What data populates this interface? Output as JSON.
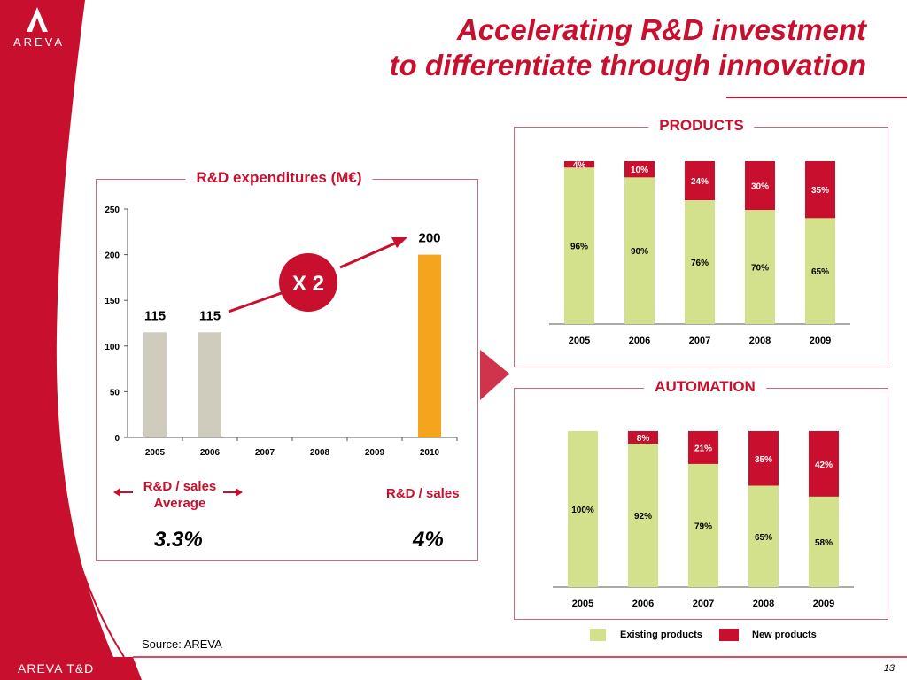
{
  "brand": {
    "logo_text": "AREVA",
    "footer_text": "AREVA T&D",
    "page_number": "13",
    "red": "#c8102e"
  },
  "title": {
    "line1": "Accelerating R&D investment",
    "line2": "to differentiate through innovation"
  },
  "source": "Source: AREVA",
  "left_panel": {
    "box_title": "R&D expenditures (M€)",
    "multiplier_label": "X 2",
    "rd_sales_avg_label": "R&D / sales Average",
    "rd_sales_avg_line1": "R&D / sales",
    "rd_sales_avg_line2": "Average",
    "rd_sales_avg_value": "3.3%",
    "rd_sales_label": "R&D / sales",
    "rd_sales_value": "4%"
  },
  "products_title": "PRODUCTS",
  "automation_title": "AUTOMATION",
  "legend": [
    {
      "label": "Existing products",
      "color": "#d4e18c"
    },
    {
      "label": "New products",
      "color": "#c8102e"
    }
  ],
  "chart_data": [
    {
      "type": "bar",
      "title": "R&D expenditures (M€)",
      "categories": [
        "2005",
        "2006",
        "2007",
        "2008",
        "2009",
        "2010"
      ],
      "values": [
        115,
        115,
        null,
        null,
        null,
        200
      ],
      "data_labels": [
        "115",
        "115",
        "",
        "",
        "",
        "200"
      ],
      "colors": [
        "#cfcbbd",
        "#cfcbbd",
        null,
        null,
        null,
        "#f5a41e"
      ],
      "ylim": [
        0,
        250
      ],
      "yticks": [
        0,
        50,
        100,
        150,
        200,
        250
      ],
      "grid": false
    },
    {
      "type": "bar",
      "stacked": true,
      "percent": true,
      "title": "PRODUCTS",
      "categories": [
        "2005",
        "2006",
        "2007",
        "2008",
        "2009"
      ],
      "series": [
        {
          "name": "Existing products",
          "values": [
            96,
            90,
            76,
            70,
            65
          ],
          "labels": [
            "96%",
            "90%",
            "76%",
            "70%",
            "65%"
          ],
          "color": "#d4e18c"
        },
        {
          "name": "New products",
          "values": [
            4,
            10,
            24,
            30,
            35
          ],
          "labels": [
            "4%",
            "10%",
            "24%",
            "30%",
            "35%"
          ],
          "color": "#c8102e"
        }
      ],
      "ylim": [
        0,
        100
      ]
    },
    {
      "type": "bar",
      "stacked": true,
      "percent": true,
      "title": "AUTOMATION",
      "categories": [
        "2005",
        "2006",
        "2007",
        "2008",
        "2009"
      ],
      "series": [
        {
          "name": "Existing products",
          "values": [
            100,
            92,
            79,
            65,
            58
          ],
          "labels": [
            "100%",
            "92%",
            "79%",
            "65%",
            "58%"
          ],
          "color": "#d4e18c"
        },
        {
          "name": "New products",
          "values": [
            0,
            8,
            21,
            35,
            42
          ],
          "labels": [
            "",
            "8%",
            "21%",
            "35%",
            "42%"
          ],
          "color": "#c8102e"
        }
      ],
      "ylim": [
        0,
        100
      ]
    }
  ]
}
